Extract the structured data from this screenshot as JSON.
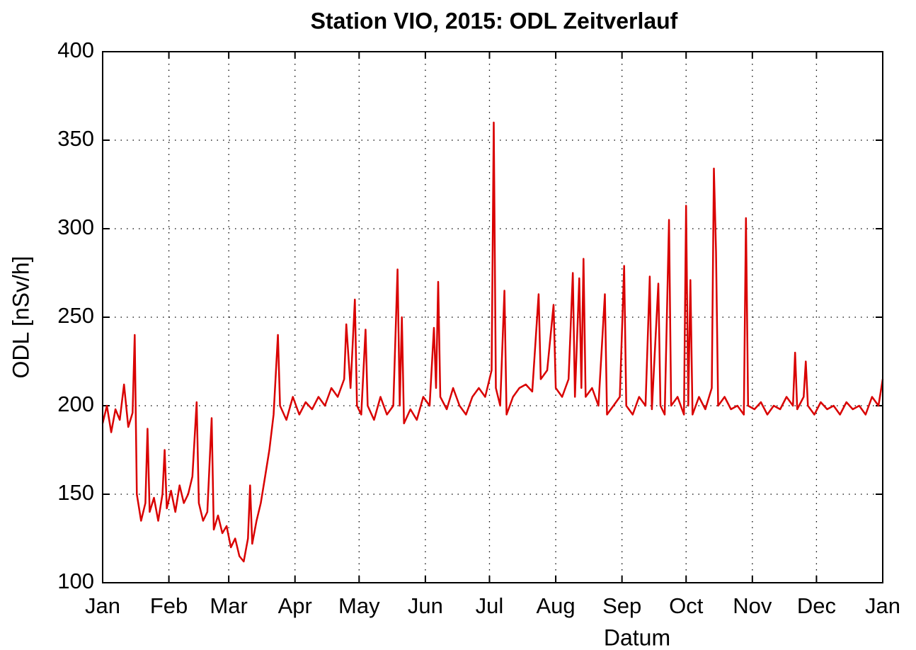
{
  "chart_data": {
    "type": "line",
    "title": "Station VIO, 2015: ODL Zeitverlauf",
    "xlabel": "Datum",
    "ylabel": "ODL [nSv/h]",
    "grid": true,
    "xlim": [
      0,
      365
    ],
    "xticks": [
      {
        "value": 0,
        "label": "Jan"
      },
      {
        "value": 31,
        "label": "Feb"
      },
      {
        "value": 59,
        "label": "Mar"
      },
      {
        "value": 90,
        "label": "Apr"
      },
      {
        "value": 120,
        "label": "May"
      },
      {
        "value": 151,
        "label": "Jun"
      },
      {
        "value": 181,
        "label": "Jul"
      },
      {
        "value": 212,
        "label": "Aug"
      },
      {
        "value": 243,
        "label": "Sep"
      },
      {
        "value": 273,
        "label": "Oct"
      },
      {
        "value": 304,
        "label": "Nov"
      },
      {
        "value": 334,
        "label": "Dec"
      },
      {
        "value": 365,
        "label": "Jan"
      }
    ],
    "ylim": [
      100,
      400
    ],
    "yticks": [
      100,
      150,
      200,
      250,
      300,
      350,
      400
    ],
    "x": [
      0,
      2,
      4,
      6,
      8,
      10,
      12,
      14,
      15,
      16,
      18,
      20,
      21,
      22,
      24,
      26,
      28,
      29,
      30,
      32,
      34,
      36,
      38,
      40,
      42,
      44,
      45,
      47,
      49,
      51,
      52,
      54,
      56,
      58,
      60,
      62,
      64,
      66,
      68,
      69,
      70,
      72,
      74,
      76,
      78,
      80,
      82,
      83,
      86,
      89,
      92,
      95,
      98,
      101,
      104,
      107,
      110,
      113,
      114,
      116,
      118,
      119,
      121,
      123,
      124,
      127,
      130,
      133,
      136,
      138,
      139,
      140,
      141,
      144,
      147,
      150,
      153,
      155,
      156,
      157,
      158,
      161,
      164,
      167,
      170,
      173,
      176,
      179,
      182,
      183,
      184,
      186,
      188,
      189,
      192,
      195,
      198,
      201,
      204,
      205,
      208,
      211,
      212,
      215,
      218,
      220,
      221,
      223,
      224,
      225,
      226,
      229,
      232,
      235,
      236,
      239,
      242,
      244,
      245,
      248,
      251,
      254,
      256,
      257,
      260,
      261,
      263,
      265,
      266,
      269,
      272,
      273,
      274,
      275,
      276,
      279,
      282,
      285,
      286,
      287,
      288,
      291,
      294,
      297,
      300,
      301,
      302,
      305,
      308,
      311,
      314,
      317,
      320,
      323,
      324,
      325,
      328,
      329,
      330,
      333,
      336,
      339,
      342,
      345,
      348,
      351,
      354,
      357,
      360,
      363,
      365
    ],
    "series": [
      {
        "color": "#d90000",
        "values": [
          190,
          200,
          185,
          198,
          192,
          212,
          188,
          196,
          240,
          150,
          135,
          145,
          187,
          140,
          148,
          135,
          150,
          175,
          142,
          152,
          140,
          155,
          145,
          150,
          160,
          202,
          145,
          135,
          140,
          193,
          130,
          138,
          128,
          132,
          120,
          125,
          115,
          112,
          125,
          155,
          122,
          135,
          145,
          160,
          175,
          195,
          240,
          200,
          192,
          205,
          195,
          202,
          198,
          205,
          200,
          210,
          205,
          215,
          246,
          210,
          260,
          200,
          195,
          243,
          200,
          192,
          205,
          195,
          200,
          277,
          200,
          250,
          190,
          198,
          192,
          205,
          200,
          244,
          210,
          270,
          205,
          198,
          210,
          200,
          195,
          205,
          210,
          205,
          220,
          360,
          210,
          200,
          265,
          195,
          205,
          210,
          212,
          208,
          263,
          215,
          220,
          257,
          210,
          205,
          215,
          275,
          205,
          272,
          210,
          283,
          205,
          210,
          200,
          263,
          195,
          200,
          205,
          279,
          200,
          195,
          205,
          200,
          273,
          198,
          269,
          200,
          195,
          305,
          200,
          205,
          195,
          313,
          200,
          271,
          195,
          205,
          198,
          210,
          334,
          287,
          200,
          205,
          198,
          200,
          195,
          306,
          200,
          198,
          202,
          195,
          200,
          198,
          205,
          200,
          230,
          198,
          205,
          225,
          200,
          195,
          202,
          198,
          200,
          195,
          202,
          198,
          200,
          195,
          205,
          200,
          215
        ]
      }
    ]
  }
}
